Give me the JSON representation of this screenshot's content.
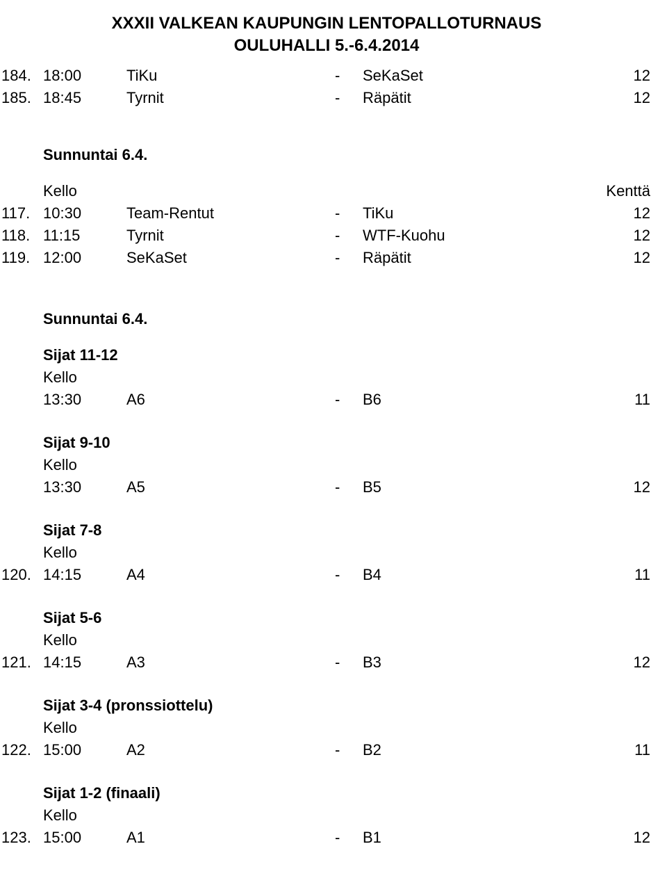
{
  "title": "XXXII VALKEAN KAUPUNGIN LENTOPALLOTURNAUS",
  "subtitle": "OULUHALLI 5.-6.4.2014",
  "top_matches": [
    {
      "idx": "184.",
      "time": "18:00",
      "team1": "TiKu",
      "dash": "-",
      "team2": "SeKaSet",
      "field": "12"
    },
    {
      "idx": "185.",
      "time": "18:45",
      "team1": "Tyrnit",
      "dash": "-",
      "team2": "Räpätit",
      "field": "12"
    }
  ],
  "labels": {
    "sunday": "Sunnuntai 6.4.",
    "kello": "Kello",
    "kentta": "Kenttä"
  },
  "morning_matches": [
    {
      "idx": "117.",
      "time": "10:30",
      "team1": "Team-Rentut",
      "dash": "-",
      "team2": "TiKu",
      "field": "12"
    },
    {
      "idx": "118.",
      "time": "11:15",
      "team1": "Tyrnit",
      "dash": "-",
      "team2": "WTF-Kuohu",
      "field": "12"
    },
    {
      "idx": "119.",
      "time": "12:00",
      "team1": "SeKaSet",
      "dash": "-",
      "team2": "Räpätit",
      "field": "12"
    }
  ],
  "sections": [
    {
      "heading": "Sijat 11-12",
      "kello_label": "Kello",
      "rows": [
        {
          "idx": "",
          "time": "13:30",
          "team1": "A6",
          "dash": "-",
          "team2": "B6",
          "field": "11"
        }
      ]
    },
    {
      "heading": "Sijat 9-10",
      "kello_label": "Kello",
      "rows": [
        {
          "idx": "",
          "time": "13:30",
          "team1": "A5",
          "dash": "-",
          "team2": "B5",
          "field": "12"
        }
      ]
    },
    {
      "heading": "Sijat 7-8",
      "kello_label": "Kello",
      "rows": [
        {
          "idx": "120.",
          "time": "14:15",
          "team1": "A4",
          "dash": "-",
          "team2": "B4",
          "field": "11"
        }
      ]
    },
    {
      "heading": "Sijat 5-6",
      "kello_label": "Kello",
      "rows": [
        {
          "idx": "121.",
          "time": "14:15",
          "team1": "A3",
          "dash": "-",
          "team2": "B3",
          "field": "12"
        }
      ]
    },
    {
      "heading": "Sijat 3-4 (pronssiottelu)",
      "kello_label": "Kello",
      "rows": [
        {
          "idx": "122.",
          "time": "15:00",
          "team1": "A2",
          "dash": "-",
          "team2": "B2",
          "field": "11"
        }
      ]
    },
    {
      "heading": "Sijat 1-2 (finaali)",
      "kello_label": "Kello",
      "rows": [
        {
          "idx": "123.",
          "time": "15:00",
          "team1": "A1",
          "dash": "-",
          "team2": "B1",
          "field": "12"
        }
      ]
    }
  ]
}
